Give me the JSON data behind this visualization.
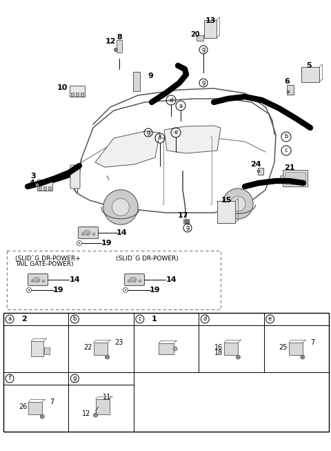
{
  "bg_color": "#ffffff",
  "text_color": "#000000",
  "line_color": "#000000",
  "figsize": [
    4.8,
    6.53
  ],
  "dpi": 100,
  "keyfob_label1": "(SLID`G DR-POWER+",
  "keyfob_label2": "TAIL GATE-POWER)",
  "keyfob_label3": "(SLID`G DR-POWER)"
}
